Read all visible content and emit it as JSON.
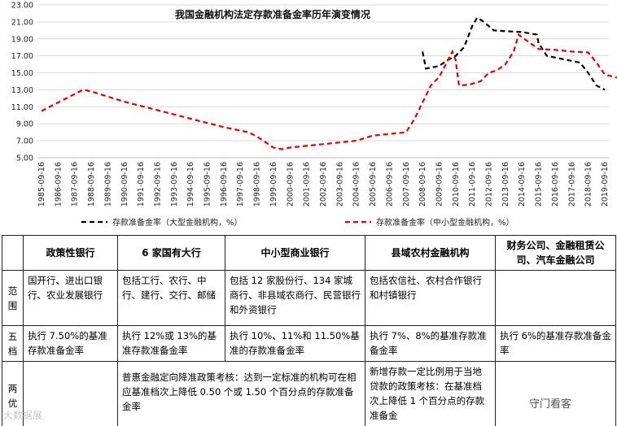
{
  "chart_data": {
    "type": "line",
    "title": "我国金融机构法定存款准备金率历年演变情况",
    "ylim": [
      5,
      23
    ],
    "yticks": [
      "5.00",
      "7.00",
      "9.00",
      "11.00",
      "13.00",
      "15.00",
      "17.00",
      "19.00",
      "21.00",
      "23.00"
    ],
    "categories": [
      "1985-09-16",
      "1986-09-16",
      "1987-09-16",
      "1988-09-16",
      "1989-09-16",
      "1990-09-16",
      "1991-09-16",
      "1992-09-16",
      "1993-09-16",
      "1994-09-16",
      "1995-09-16",
      "1996-09-16",
      "1997-09-16",
      "1998-09-16",
      "1999-09-16",
      "2000-09-16",
      "2001-09-16",
      "2002-09-16",
      "2003-09-16",
      "2004-09-16",
      "2005-09-16",
      "2006-09-16",
      "2007-09-16",
      "2008-09-16",
      "2009-09-16",
      "2010-09-16",
      "2011-09-16",
      "2012-09-16",
      "2013-09-16",
      "2014-09-16",
      "2015-09-16",
      "2016-09-16",
      "2017-09-16",
      "2018-09-16",
      "2019-09-16"
    ],
    "series": [
      {
        "name": "存款准备金率（大型金融机构，%）",
        "color": "#000000",
        "points": [
          [
            23.0,
            17.5
          ],
          [
            23.2,
            15.5
          ],
          [
            24.0,
            15.8
          ],
          [
            24.5,
            16.5
          ],
          [
            25.0,
            17.0
          ],
          [
            25.5,
            18.0
          ],
          [
            26.0,
            20.5
          ],
          [
            26.3,
            21.5
          ],
          [
            26.7,
            21.0
          ],
          [
            27.3,
            20.0
          ],
          [
            28.0,
            19.9
          ],
          [
            29.0,
            19.8
          ],
          [
            29.9,
            19.5
          ],
          [
            30.0,
            18.5
          ],
          [
            30.5,
            17.0
          ],
          [
            31.5,
            16.6
          ],
          [
            32.5,
            16.2
          ],
          [
            33.0,
            15.0
          ],
          [
            33.5,
            13.5
          ],
          [
            34.0,
            13.0
          ]
        ]
      },
      {
        "name": "存款准备金率（中小型金融机构，%）",
        "color": "#e00000",
        "points": [
          [
            0.0,
            10.5
          ],
          [
            1.0,
            11.5
          ],
          [
            2.0,
            12.5
          ],
          [
            2.5,
            13.0
          ],
          [
            3.0,
            12.8
          ],
          [
            4.0,
            12.2
          ],
          [
            5.0,
            11.6
          ],
          [
            6.0,
            11.1
          ],
          [
            7.0,
            10.6
          ],
          [
            8.0,
            10.1
          ],
          [
            9.0,
            9.6
          ],
          [
            10.0,
            9.1
          ],
          [
            11.0,
            8.6
          ],
          [
            12.0,
            8.2
          ],
          [
            12.5,
            8.0
          ],
          [
            13.0,
            7.5
          ],
          [
            14.0,
            6.2
          ],
          [
            14.5,
            6.0
          ],
          [
            15.0,
            6.2
          ],
          [
            16.0,
            6.4
          ],
          [
            17.0,
            6.6
          ],
          [
            18.0,
            6.8
          ],
          [
            19.0,
            7.0
          ],
          [
            20.0,
            7.6
          ],
          [
            21.0,
            7.8
          ],
          [
            22.0,
            8.0
          ],
          [
            22.5,
            9.5
          ],
          [
            23.0,
            11.5
          ],
          [
            23.5,
            13.5
          ],
          [
            24.0,
            14.5
          ],
          [
            24.8,
            17.5
          ],
          [
            25.0,
            16.5
          ],
          [
            25.2,
            13.5
          ],
          [
            25.8,
            13.6
          ],
          [
            26.5,
            14.0
          ],
          [
            27.0,
            15.0
          ],
          [
            27.5,
            15.3
          ],
          [
            28.0,
            16.0
          ],
          [
            28.5,
            17.5
          ],
          [
            28.8,
            19.5
          ],
          [
            29.0,
            19.2
          ],
          [
            29.5,
            18.5
          ],
          [
            30.0,
            17.8
          ],
          [
            31.0,
            17.7
          ],
          [
            32.0,
            17.5
          ],
          [
            33.0,
            17.4
          ],
          [
            33.5,
            16.2
          ],
          [
            34.0,
            14.8
          ],
          [
            35.0,
            14.3
          ],
          [
            36.0,
            14.0
          ],
          [
            36.5,
            13.0
          ],
          [
            37.0,
            11.5
          ],
          [
            37.5,
            11.0
          ]
        ]
      }
    ],
    "legend_position": "bottom"
  },
  "table": {
    "headers": [
      "",
      "政策性银行",
      "6 家国有大行",
      "中小型商业银行",
      "县域农村金融机构",
      "财务公司、金融租赁公司、汽车金融公司"
    ],
    "rows": [
      {
        "label": "范围",
        "cells": [
          "国开行、进出口银行、农业发展银行",
          "包括工行、农行、中行、建行、交行、邮储",
          "包括 12 家股份行、134 家城商行、非县域农商行、民营银行和外资银行",
          "包括农信社、农村合作银行和村镇银行",
          ""
        ]
      },
      {
        "label": "五档",
        "cells": [
          "执行 7.50%的基准存款准备金率",
          "执行 12%或 13%的基准存款准备金率",
          "执行 10%、11%和 11.50%基准的存款准备金率",
          "执行 7%、8%的基准存款准备金率",
          "执行 6%的基准存款准备金率"
        ]
      },
      {
        "label": "两优",
        "cells": [
          "",
          "普惠金融定向降准政策考核：达到一定标准的机构可在相应基准档次上降低 0.50 个或 1.50 个百分点的存款准备金率",
          "新增存款一定比例用于当地贷款的政策考核：在基准档次上降低 1 个百分点的存款准备金",
          ""
        ]
      }
    ]
  },
  "watermarks": {
    "left": "大数据展",
    "right": "守门看客"
  }
}
